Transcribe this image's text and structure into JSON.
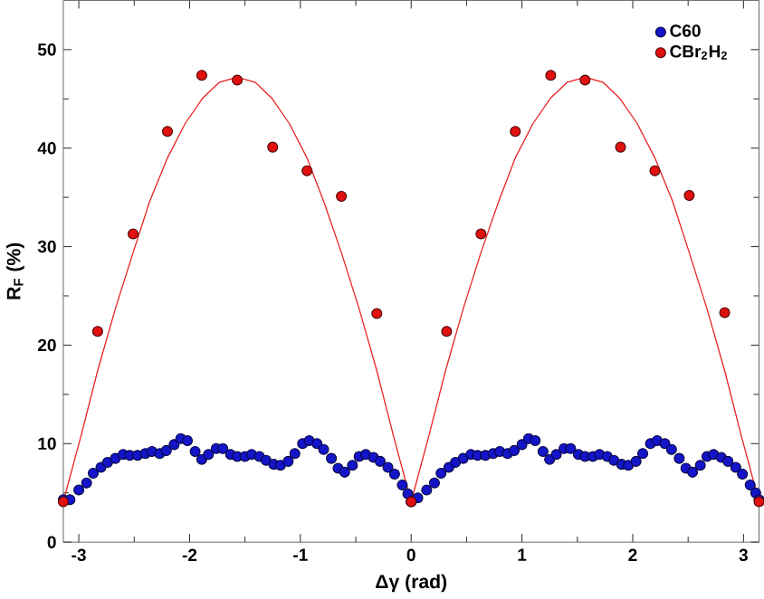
{
  "chart_data": {
    "type": "scatter",
    "xlabel": "Δγ (rad)",
    "ylabel": "R$_{F}$ (%)",
    "xlim": [
      -3.14,
      3.14
    ],
    "ylim": [
      0,
      55
    ],
    "xticks": [
      -3,
      -2,
      -1,
      0,
      1,
      2,
      3
    ],
    "yticks": [
      0,
      10,
      20,
      30,
      40,
      50
    ],
    "legend": "top right",
    "marker": "circle",
    "grid": false,
    "series": [
      {
        "name": "C60",
        "color": "#1414c8",
        "x": [
          -3.14,
          -3.08,
          -3.0,
          -2.93,
          -2.87,
          -2.8,
          -2.74,
          -2.67,
          -2.6,
          -2.54,
          -2.47,
          -2.4,
          -2.34,
          -2.27,
          -2.21,
          -2.14,
          -2.08,
          -2.02,
          -1.95,
          -1.89,
          -1.83,
          -1.76,
          -1.7,
          -1.63,
          -1.57,
          -1.5,
          -1.44,
          -1.37,
          -1.31,
          -1.24,
          -1.18,
          -1.11,
          -1.05,
          -0.98,
          -0.92,
          -0.85,
          -0.79,
          -0.72,
          -0.66,
          -0.6,
          -0.53,
          -0.47,
          -0.41,
          -0.34,
          -0.28,
          -0.21,
          -0.15,
          -0.08,
          -0.03,
          0.0,
          0.06,
          0.14,
          0.21,
          0.27,
          0.34,
          0.4,
          0.47,
          0.54,
          0.6,
          0.67,
          0.74,
          0.8,
          0.87,
          0.93,
          1.0,
          1.06,
          1.12,
          1.19,
          1.25,
          1.31,
          1.38,
          1.44,
          1.51,
          1.57,
          1.64,
          1.7,
          1.77,
          1.83,
          1.9,
          1.96,
          2.03,
          2.09,
          2.16,
          2.22,
          2.29,
          2.35,
          2.42,
          2.48,
          2.54,
          2.61,
          2.67,
          2.73,
          2.8,
          2.86,
          2.93,
          2.99,
          3.06,
          3.11,
          3.14
        ],
        "values": [
          4.3,
          4.3,
          5.3,
          6.0,
          7.0,
          7.6,
          8.1,
          8.5,
          8.9,
          8.8,
          8.8,
          9.0,
          9.2,
          9.0,
          9.3,
          9.9,
          10.5,
          10.3,
          9.2,
          8.4,
          8.9,
          9.5,
          9.5,
          8.9,
          8.7,
          8.7,
          8.9,
          8.7,
          8.3,
          7.9,
          7.8,
          8.2,
          9.0,
          10.0,
          10.3,
          10.0,
          9.4,
          8.5,
          7.5,
          7.1,
          7.8,
          8.7,
          8.9,
          8.6,
          8.2,
          7.6,
          6.9,
          5.8,
          4.9,
          4.1,
          4.5,
          5.3,
          6.0,
          7.0,
          7.6,
          8.1,
          8.5,
          8.9,
          8.8,
          8.8,
          9.0,
          9.2,
          9.0,
          9.3,
          9.9,
          10.5,
          10.3,
          9.2,
          8.4,
          8.9,
          9.5,
          9.5,
          8.9,
          8.7,
          8.7,
          8.9,
          8.7,
          8.3,
          7.9,
          7.8,
          8.2,
          9.0,
          10.0,
          10.3,
          10.0,
          9.4,
          8.5,
          7.5,
          7.1,
          7.8,
          8.7,
          8.9,
          8.6,
          8.2,
          7.6,
          6.9,
          5.8,
          5.0,
          4.3
        ]
      },
      {
        "name": "CBr$_{2}$H$_{2}$",
        "color": "#e01010",
        "x": [
          -3.14,
          -2.83,
          -2.51,
          -2.2,
          -1.89,
          -1.57,
          -1.25,
          -0.94,
          -0.63,
          -0.31,
          0.0,
          0.32,
          0.63,
          0.94,
          1.26,
          1.57,
          1.89,
          2.2,
          2.51,
          2.83,
          3.14
        ],
        "values": [
          4.1,
          21.4,
          31.3,
          41.7,
          47.4,
          46.9,
          40.1,
          37.7,
          35.1,
          23.2,
          4.1,
          21.4,
          31.3,
          41.7,
          47.4,
          46.9,
          40.1,
          37.7,
          35.2,
          23.3,
          4.1
        ]
      },
      {
        "type": "line",
        "color": "#e82020",
        "marker": "none",
        "x": [
          -3.14,
          -2.98,
          -2.83,
          -2.67,
          -2.51,
          -2.36,
          -2.2,
          -2.04,
          -1.88,
          -1.73,
          -1.57,
          -1.41,
          -1.26,
          -1.1,
          -0.94,
          -0.79,
          -0.63,
          -0.47,
          -0.31,
          -0.16,
          0.0,
          0.16,
          0.31,
          0.47,
          0.63,
          0.79,
          0.94,
          1.1,
          1.26,
          1.41,
          1.57,
          1.73,
          1.88,
          2.04,
          2.2,
          2.36,
          2.51,
          2.67,
          2.83,
          2.98,
          3.14
        ],
        "values": [
          4.1,
          10.8,
          17.4,
          23.7,
          29.4,
          34.6,
          39.0,
          42.5,
          45.1,
          46.7,
          47.2,
          46.7,
          45.1,
          42.5,
          39.0,
          34.6,
          29.4,
          23.7,
          17.4,
          10.8,
          4.1,
          10.8,
          17.4,
          23.7,
          29.4,
          34.6,
          39.0,
          42.5,
          45.1,
          46.7,
          47.2,
          46.7,
          45.1,
          42.5,
          39.0,
          34.6,
          29.4,
          23.7,
          17.4,
          10.8,
          4.1
        ]
      }
    ]
  }
}
